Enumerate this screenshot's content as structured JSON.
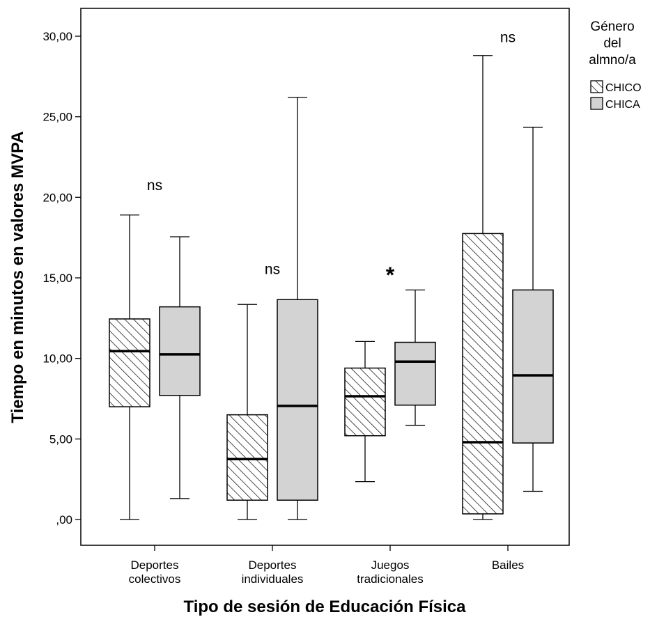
{
  "chart_data": {
    "type": "boxplot",
    "xlabel": "Tipo de sesión de Educación Física",
    "ylabel": "Tiempo en minutos en valores MVPA",
    "ylim": [
      -1.6,
      31.6
    ],
    "yticks": [
      0,
      5,
      10,
      15,
      20,
      25,
      30
    ],
    "ytick_labels": [
      ",00",
      "5,00",
      "10,00",
      "15,00",
      "20,00",
      "25,00",
      "30,00"
    ],
    "categories": [
      [
        "Deportes",
        "colectivos"
      ],
      [
        "Deportes",
        "individuales"
      ],
      [
        "Juegos",
        "tradicionales"
      ],
      [
        "Bailes"
      ]
    ],
    "legend": {
      "title": [
        "Género",
        "del",
        "almno/a"
      ],
      "position": "right"
    },
    "series": [
      {
        "name": "CHICO",
        "fill": "hatch",
        "boxes": [
          {
            "min": 0.0,
            "q1": 7.0,
            "median": 10.45,
            "q3": 12.45,
            "max": 18.9
          },
          {
            "min": 0.0,
            "q1": 1.2,
            "median": 3.75,
            "q3": 6.5,
            "max": 13.35
          },
          {
            "min": 2.35,
            "q1": 5.2,
            "median": 7.65,
            "q3": 9.4,
            "max": 11.05
          },
          {
            "min": 0.0,
            "q1": 0.35,
            "median": 4.8,
            "q3": 17.75,
            "max": 28.8
          }
        ]
      },
      {
        "name": "CHICA",
        "fill": "#d3d3d3",
        "boxes": [
          {
            "min": 1.3,
            "q1": 7.7,
            "median": 10.25,
            "q3": 13.2,
            "max": 17.55
          },
          {
            "min": 0.0,
            "q1": 1.2,
            "median": 7.05,
            "q3": 13.65,
            "max": 26.2
          },
          {
            "min": 5.85,
            "q1": 7.1,
            "median": 9.8,
            "q3": 11.0,
            "max": 14.25
          },
          {
            "min": 1.75,
            "q1": 4.75,
            "median": 8.95,
            "q3": 14.25,
            "max": 24.35
          }
        ]
      }
    ],
    "annotations": [
      {
        "category": 0,
        "text": "ns",
        "y": 20.7
      },
      {
        "category": 1,
        "text": "ns",
        "y": 15.5
      },
      {
        "category": 2,
        "text": "*",
        "y": 15.3
      },
      {
        "category": 3,
        "text": "ns",
        "y": 29.9
      }
    ],
    "colors": {
      "box_gray": "#d3d3d3",
      "stroke": "#000000",
      "background": "#ffffff"
    }
  }
}
